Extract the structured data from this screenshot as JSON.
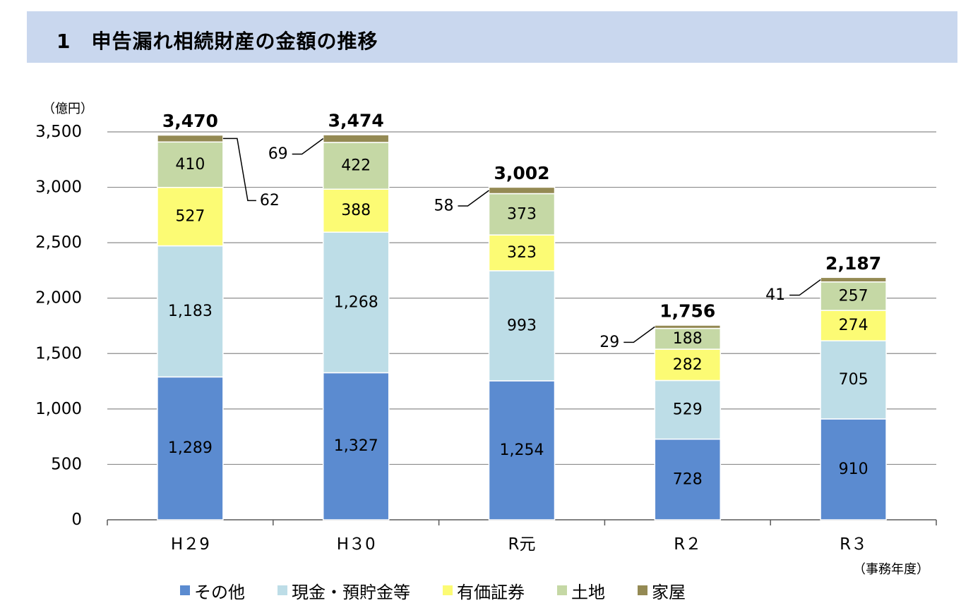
{
  "header": {
    "title": "1　申告漏れ相続財産の金額の推移"
  },
  "chart_data": {
    "type": "bar",
    "stacked": true,
    "unit_label": "（億円）",
    "x_suffix": "（事務年度）",
    "categories": [
      "H29",
      "H30",
      "R元",
      "R2",
      "R3"
    ],
    "category_labels": [
      "H２9",
      "H３0",
      "R元",
      "R２",
      "R３"
    ],
    "ylim": [
      0,
      3500
    ],
    "yticks": [
      0,
      500,
      1000,
      1500,
      2000,
      2500,
      3000,
      3500
    ],
    "ytick_labels": [
      "0",
      "500",
      "1,000",
      "1,500",
      "2,000",
      "2,500",
      "3,000",
      "3,500"
    ],
    "grid": true,
    "legend_position": "bottom",
    "series": [
      {
        "name": "その他",
        "color": "#5b8bd0",
        "values": [
          1289,
          1327,
          1254,
          728,
          910
        ],
        "labels": [
          "1,289",
          "1,327",
          "1,254",
          "728",
          "910"
        ]
      },
      {
        "name": "現金・預貯金等",
        "color": "#bddde7",
        "values": [
          1183,
          1268,
          993,
          529,
          705
        ],
        "labels": [
          "1,183",
          "1,268",
          "993",
          "529",
          "705"
        ]
      },
      {
        "name": "有価証券",
        "color": "#fcfb74",
        "values": [
          527,
          388,
          323,
          282,
          274
        ],
        "labels": [
          "527",
          "388",
          "323",
          "282",
          "274"
        ]
      },
      {
        "name": "土地",
        "color": "#c5d8a5",
        "values": [
          410,
          422,
          373,
          188,
          257
        ],
        "labels": [
          "410",
          "422",
          "373",
          "188",
          "257"
        ]
      },
      {
        "name": "家屋",
        "color": "#948a54",
        "values": [
          62,
          69,
          58,
          29,
          41
        ],
        "labels": [
          "62",
          "69",
          "58",
          "29",
          "41"
        ]
      }
    ],
    "totals": [
      3470,
      3474,
      3002,
      1756,
      2187
    ],
    "total_labels": [
      "3,470",
      "3,474",
      "3,002",
      "1,756",
      "2,187"
    ]
  }
}
